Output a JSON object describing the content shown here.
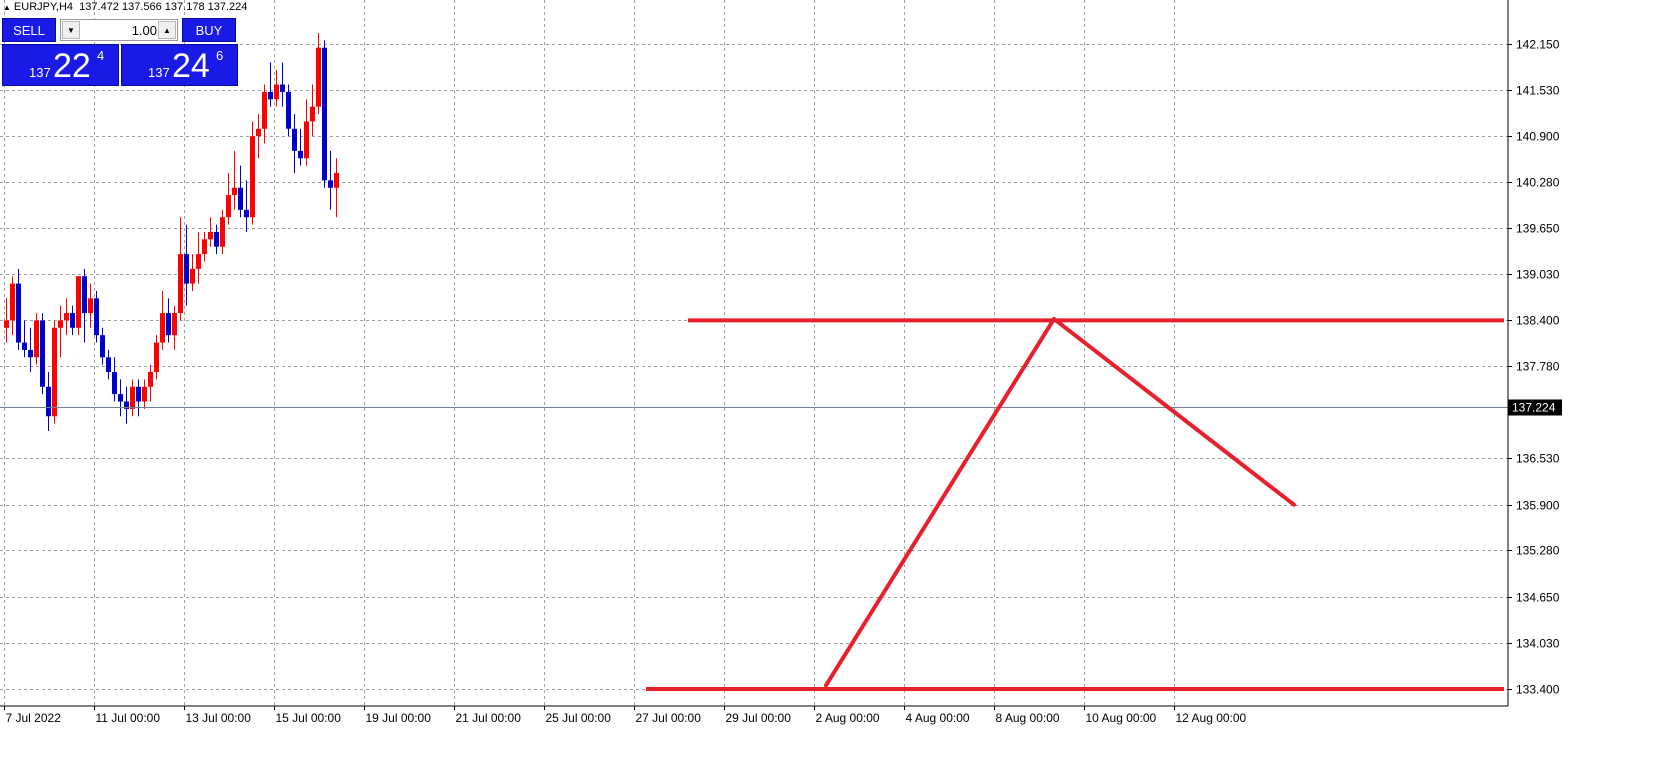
{
  "header": {
    "symbol": "EURJPY,H4",
    "ohlc": "137.472 137.566 137.178 137.224"
  },
  "trade_panel": {
    "sell_label": "SELL",
    "buy_label": "BUY",
    "lot_value": "1.00",
    "sell_price": {
      "prefix": "137",
      "big": "22",
      "sup": "4"
    },
    "buy_price": {
      "prefix": "137",
      "big": "24",
      "sup": "6"
    }
  },
  "colors": {
    "bull": "#ff0000",
    "bear": "#0000cc",
    "grid": "#a0a0a0",
    "trendline": "#e8202c",
    "price_tag_bg": "#000000",
    "price_tag_fg": "#ffffff"
  },
  "chart_data": {
    "type": "candlestick",
    "symbol": "EURJPY",
    "timeframe": "H4",
    "y_ticks": [
      142.15,
      141.53,
      140.9,
      140.28,
      139.65,
      139.03,
      138.4,
      137.78,
      137.224,
      136.53,
      135.9,
      135.28,
      134.65,
      134.03,
      133.4
    ],
    "y_tick_labels": [
      "142.150",
      "141.530",
      "140.900",
      "140.280",
      "139.650",
      "139.030",
      "138.400",
      "137.780",
      "137.224",
      "136.530",
      "135.900",
      "135.280",
      "134.650",
      "134.030",
      "133.400"
    ],
    "current_price": 137.224,
    "current_price_label": "137.224",
    "x_labels": [
      {
        "label": "7 Jul 2022",
        "bar": 0
      },
      {
        "label": "11 Jul 00:00",
        "bar": 15
      },
      {
        "label": "13 Jul 00:00",
        "bar": 30
      },
      {
        "label": "15 Jul 00:00",
        "bar": 45
      },
      {
        "label": "19 Jul 00:00",
        "bar": 60
      },
      {
        "label": "21 Jul 00:00",
        "bar": 75
      },
      {
        "label": "25 Jul 00:00",
        "bar": 90
      },
      {
        "label": "27 Jul 00:00",
        "bar": 105
      },
      {
        "label": "29 Jul 00:00",
        "bar": 120
      },
      {
        "label": "2 Aug 00:00",
        "bar": 135
      },
      {
        "label": "4 Aug 00:00",
        "bar": 150
      },
      {
        "label": "8 Aug 00:00",
        "bar": 165
      },
      {
        "label": "10 Aug 00:00",
        "bar": 180
      },
      {
        "label": "12 Aug 00:00",
        "bar": 195
      }
    ],
    "bars_visible": 250,
    "candles": [
      {
        "o": 138.3,
        "h": 138.7,
        "l": 138.1,
        "c": 138.4
      },
      {
        "o": 138.4,
        "h": 139.0,
        "l": 138.2,
        "c": 138.9
      },
      {
        "o": 138.9,
        "h": 139.1,
        "l": 138.0,
        "c": 138.1
      },
      {
        "o": 138.1,
        "h": 138.4,
        "l": 137.9,
        "c": 138.0
      },
      {
        "o": 138.0,
        "h": 138.3,
        "l": 137.7,
        "c": 137.9
      },
      {
        "o": 137.9,
        "h": 138.5,
        "l": 137.8,
        "c": 138.4
      },
      {
        "o": 138.4,
        "h": 138.5,
        "l": 137.4,
        "c": 137.5
      },
      {
        "o": 137.5,
        "h": 137.7,
        "l": 136.9,
        "c": 137.1
      },
      {
        "o": 137.1,
        "h": 138.4,
        "l": 137.0,
        "c": 138.3
      },
      {
        "o": 138.3,
        "h": 138.6,
        "l": 137.9,
        "c": 138.4
      },
      {
        "o": 138.4,
        "h": 138.7,
        "l": 138.2,
        "c": 138.5
      },
      {
        "o": 138.5,
        "h": 138.6,
        "l": 138.2,
        "c": 138.3
      },
      {
        "o": 138.3,
        "h": 139.0,
        "l": 138.2,
        "c": 139.0
      },
      {
        "o": 139.0,
        "h": 139.1,
        "l": 138.1,
        "c": 138.5
      },
      {
        "o": 138.5,
        "h": 138.9,
        "l": 138.3,
        "c": 138.7
      },
      {
        "o": 138.7,
        "h": 138.8,
        "l": 138.1,
        "c": 138.2
      },
      {
        "o": 138.2,
        "h": 138.3,
        "l": 137.8,
        "c": 137.9
      },
      {
        "o": 137.9,
        "h": 138.0,
        "l": 137.6,
        "c": 137.7
      },
      {
        "o": 137.7,
        "h": 137.9,
        "l": 137.3,
        "c": 137.4
      },
      {
        "o": 137.4,
        "h": 137.6,
        "l": 137.1,
        "c": 137.3
      },
      {
        "o": 137.3,
        "h": 137.5,
        "l": 137.0,
        "c": 137.2
      },
      {
        "o": 137.2,
        "h": 137.6,
        "l": 137.1,
        "c": 137.5
      },
      {
        "o": 137.5,
        "h": 137.6,
        "l": 137.1,
        "c": 137.3
      },
      {
        "o": 137.3,
        "h": 137.6,
        "l": 137.2,
        "c": 137.5
      },
      {
        "o": 137.5,
        "h": 137.8,
        "l": 137.3,
        "c": 137.7
      },
      {
        "o": 137.7,
        "h": 138.2,
        "l": 137.6,
        "c": 138.1
      },
      {
        "o": 138.1,
        "h": 138.8,
        "l": 138.0,
        "c": 138.5
      },
      {
        "o": 138.5,
        "h": 138.7,
        "l": 138.1,
        "c": 138.2
      },
      {
        "o": 138.2,
        "h": 138.6,
        "l": 138.0,
        "c": 138.5
      },
      {
        "o": 138.5,
        "h": 139.8,
        "l": 138.4,
        "c": 139.3
      },
      {
        "o": 139.3,
        "h": 139.7,
        "l": 138.6,
        "c": 138.9
      },
      {
        "o": 138.9,
        "h": 139.3,
        "l": 138.8,
        "c": 139.1
      },
      {
        "o": 139.1,
        "h": 139.6,
        "l": 138.9,
        "c": 139.3
      },
      {
        "o": 139.3,
        "h": 139.6,
        "l": 139.2,
        "c": 139.5
      },
      {
        "o": 139.5,
        "h": 139.8,
        "l": 139.4,
        "c": 139.6
      },
      {
        "o": 139.6,
        "h": 139.7,
        "l": 139.3,
        "c": 139.4
      },
      {
        "o": 139.4,
        "h": 139.9,
        "l": 139.3,
        "c": 139.8
      },
      {
        "o": 139.8,
        "h": 140.4,
        "l": 139.7,
        "c": 140.1
      },
      {
        "o": 140.1,
        "h": 140.7,
        "l": 139.9,
        "c": 140.2
      },
      {
        "o": 140.2,
        "h": 140.5,
        "l": 139.8,
        "c": 139.9
      },
      {
        "o": 139.9,
        "h": 140.3,
        "l": 139.6,
        "c": 139.8
      },
      {
        "o": 139.8,
        "h": 141.1,
        "l": 139.7,
        "c": 140.9
      },
      {
        "o": 140.9,
        "h": 141.2,
        "l": 140.6,
        "c": 141.0
      },
      {
        "o": 141.0,
        "h": 141.6,
        "l": 140.8,
        "c": 141.5
      },
      {
        "o": 141.5,
        "h": 141.9,
        "l": 141.3,
        "c": 141.4
      },
      {
        "o": 141.4,
        "h": 141.8,
        "l": 141.3,
        "c": 141.6
      },
      {
        "o": 141.6,
        "h": 141.9,
        "l": 141.3,
        "c": 141.5
      },
      {
        "o": 141.5,
        "h": 141.6,
        "l": 140.9,
        "c": 141.0
      },
      {
        "o": 141.0,
        "h": 141.2,
        "l": 140.4,
        "c": 140.7
      },
      {
        "o": 140.7,
        "h": 141.0,
        "l": 140.5,
        "c": 140.6
      },
      {
        "o": 140.6,
        "h": 141.4,
        "l": 140.5,
        "c": 141.1
      },
      {
        "o": 141.1,
        "h": 141.6,
        "l": 140.9,
        "c": 141.3
      },
      {
        "o": 141.3,
        "h": 142.3,
        "l": 141.2,
        "c": 142.1
      },
      {
        "o": 142.1,
        "h": 142.2,
        "l": 140.2,
        "c": 140.3
      },
      {
        "o": 140.3,
        "h": 140.7,
        "l": 139.9,
        "c": 140.2
      },
      {
        "o": 140.2,
        "h": 140.6,
        "l": 139.8,
        "c": 140.4
      }
    ],
    "annotations": [
      {
        "type": "horizontal",
        "price": 138.4,
        "from_bar": 114,
        "to_bar": 250,
        "label": ""
      },
      {
        "type": "horizontal",
        "price": 133.4,
        "from_bar": 107,
        "to_bar": 250,
        "label": ""
      },
      {
        "type": "trend",
        "from": {
          "bar": 137,
          "price": 133.45
        },
        "to": {
          "bar": 175,
          "price": 138.42
        }
      },
      {
        "type": "trend",
        "from": {
          "bar": 175,
          "price": 138.42
        },
        "to": {
          "bar": 215,
          "price": 135.9
        }
      }
    ]
  }
}
